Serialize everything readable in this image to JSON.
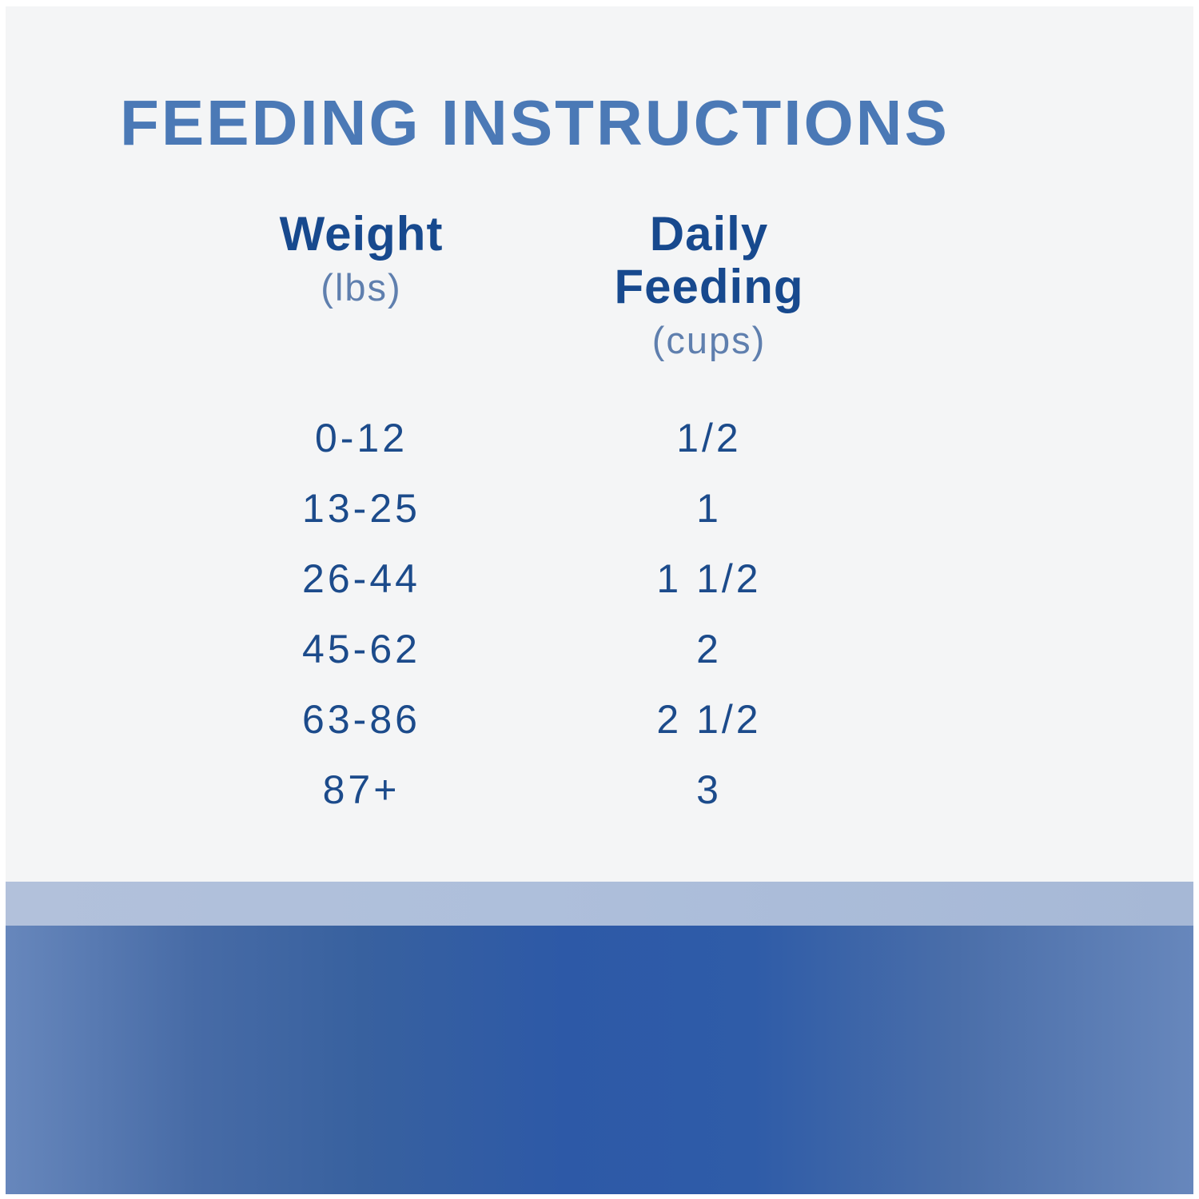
{
  "chart_data": {
    "type": "table",
    "title": "FEEDING INSTRUCTIONS",
    "columns": [
      {
        "label": "Weight",
        "unit": "(lbs)"
      },
      {
        "label": "Daily Feeding",
        "unit": "(cups)"
      }
    ],
    "rows": [
      {
        "weight": "0-12",
        "cups": "1/2"
      },
      {
        "weight": "13-25",
        "cups": "1"
      },
      {
        "weight": "26-44",
        "cups": "1 1/2"
      },
      {
        "weight": "45-62",
        "cups": "2"
      },
      {
        "weight": "63-86",
        "cups": "2 1/2"
      },
      {
        "weight": "87+",
        "cups": "3"
      }
    ]
  },
  "colors": {
    "title": "#4b79b6",
    "header": "#17498e",
    "unit": "#5f7fae",
    "row_text": "#1c4b8b",
    "panel_bg": "#f4f5f6",
    "page_bg": "#ffffff",
    "band_light": "#aabdd9",
    "band_dark_edge": "#6787bc",
    "band_dark_mid": "#2d59a7"
  }
}
